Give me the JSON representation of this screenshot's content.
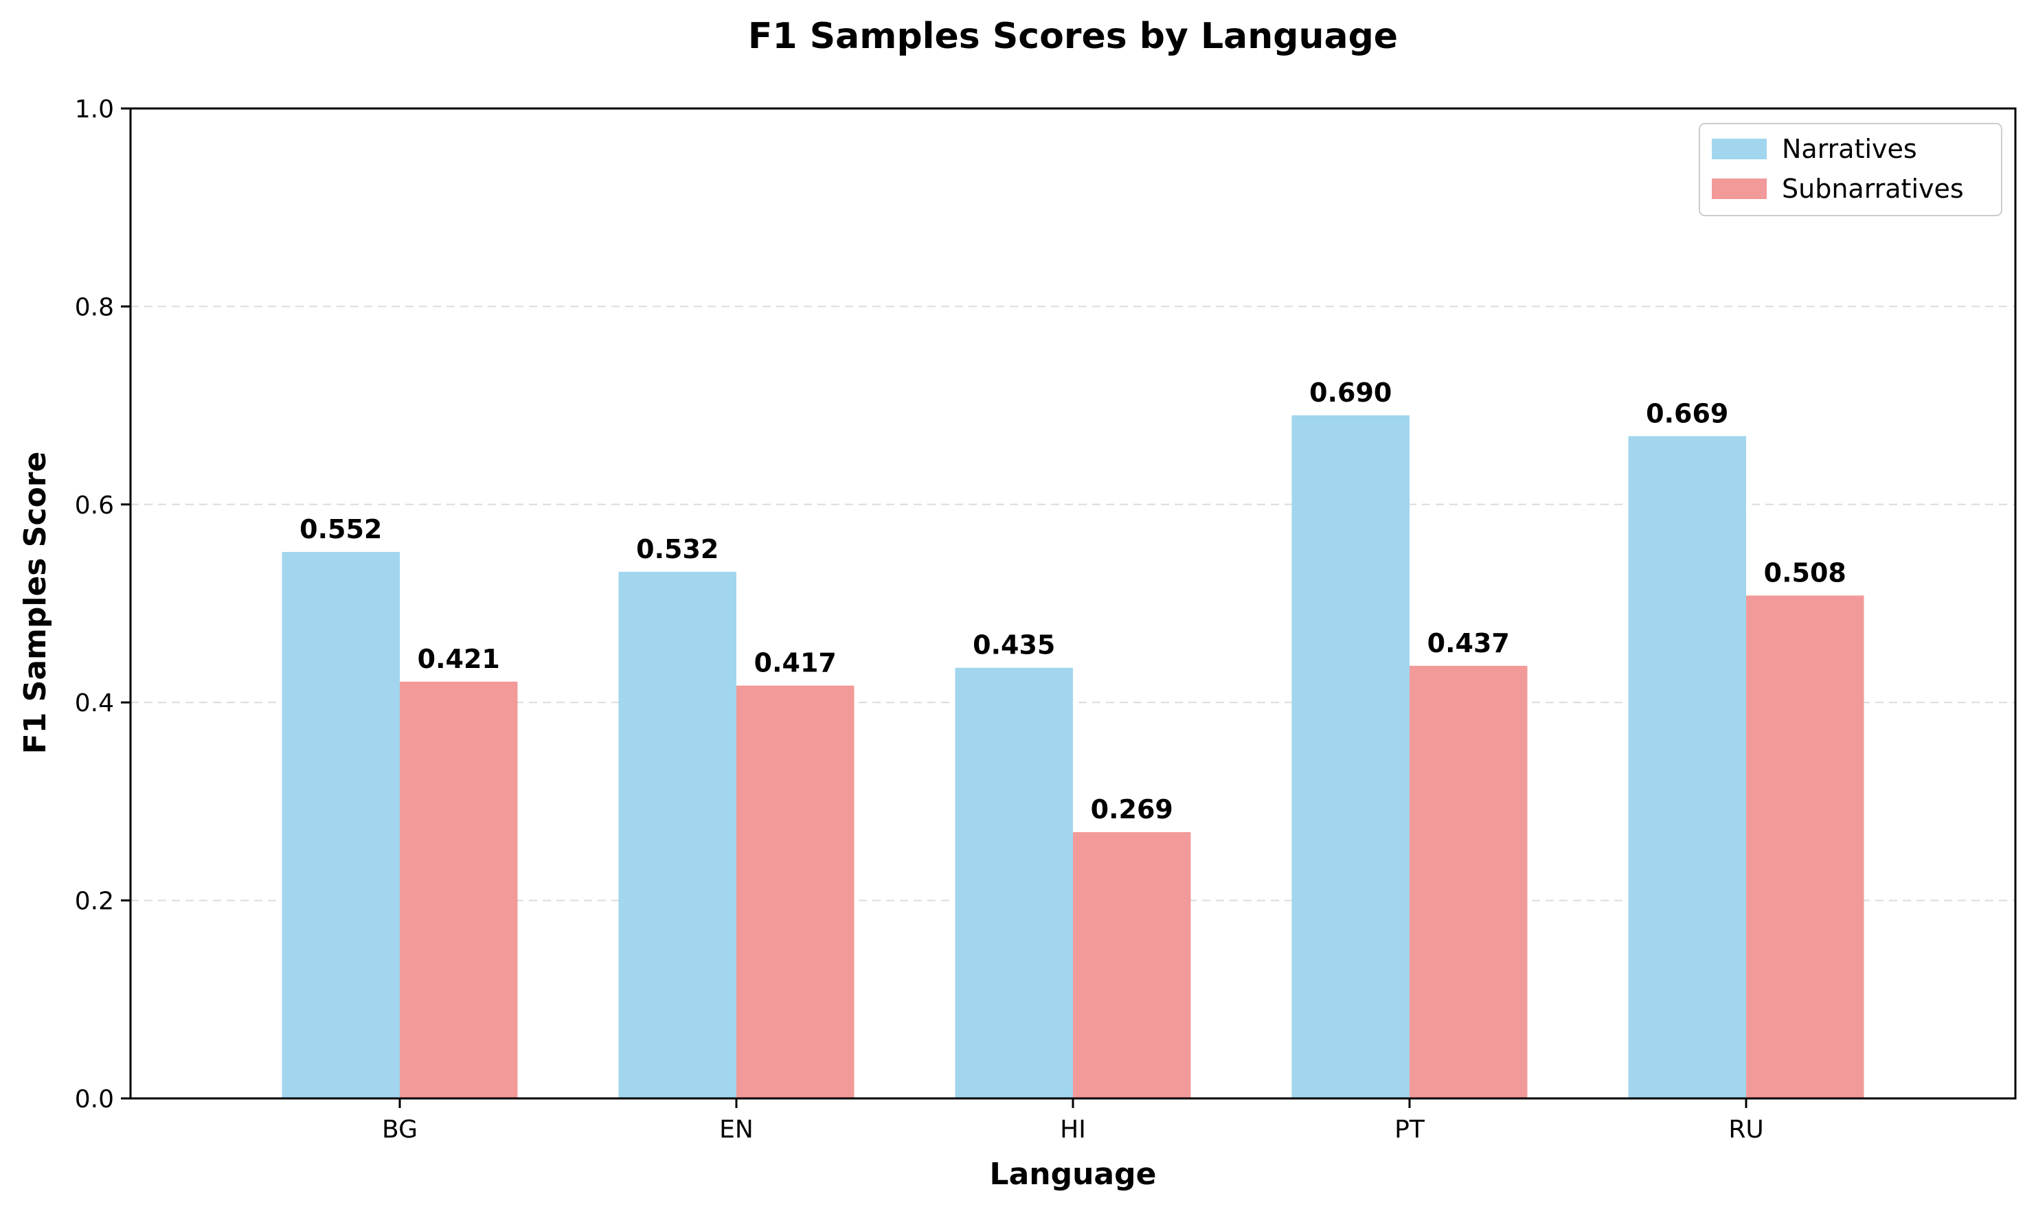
{
  "chart_data": {
    "type": "bar",
    "title": "F1 Samples Scores by Language",
    "xlabel": "Language",
    "ylabel": "F1 Samples Score",
    "categories": [
      "BG",
      "EN",
      "HI",
      "PT",
      "RU"
    ],
    "series": [
      {
        "name": "Narratives",
        "color": "#a1d6ee",
        "values": [
          0.552,
          0.532,
          0.435,
          0.69,
          0.669
        ],
        "labels": [
          "0.552",
          "0.532",
          "0.435",
          "0.690",
          "0.669"
        ]
      },
      {
        "name": "Subnarratives",
        "color": "#f29a99",
        "values": [
          0.421,
          0.417,
          0.269,
          0.437,
          0.508
        ],
        "labels": [
          "0.421",
          "0.417",
          "0.269",
          "0.437",
          "0.508"
        ]
      }
    ],
    "ylim": [
      0,
      1.0
    ],
    "yticks": [
      0.0,
      0.2,
      0.4,
      0.6,
      0.8,
      1.0
    ],
    "ytick_labels": [
      "0.0",
      "0.2",
      "0.4",
      "0.6",
      "0.8",
      "1.0"
    ],
    "grid": "horizontal dashed",
    "legend_position": "top-right"
  }
}
